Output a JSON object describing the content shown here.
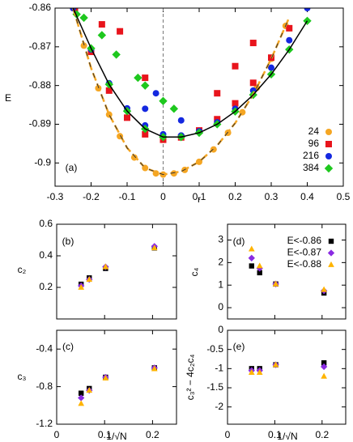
{
  "chart_data": [
    {
      "type": "scatter",
      "label": "(a)",
      "xlabel": "r",
      "ylabel": "E",
      "xlim": [
        -0.3,
        0.5
      ],
      "ylim": [
        -0.906,
        -0.86
      ],
      "xticks": [
        -0.3,
        -0.2,
        -0.1,
        0,
        0.1,
        0.2,
        0.3,
        0.4,
        0.5
      ],
      "yticks": [
        -0.9,
        -0.89,
        -0.88,
        -0.87,
        -0.86
      ],
      "vline": 0,
      "legend": "lower right",
      "series": [
        {
          "name": "24",
          "color": "#f5a623",
          "marker": "circle",
          "x": [
            -0.25,
            -0.22,
            -0.18,
            -0.15,
            -0.12,
            -0.08,
            -0.05,
            -0.02,
            0.0,
            0.03,
            0.06,
            0.1,
            0.14,
            0.18,
            0.22,
            0.26,
            0.3,
            0.34
          ],
          "values": [
            -0.86,
            -0.8697,
            -0.8807,
            -0.8875,
            -0.8931,
            -0.8986,
            -0.9013,
            -0.9027,
            -0.903,
            -0.9027,
            -0.9018,
            -0.8997,
            -0.8965,
            -0.8922,
            -0.8869,
            -0.8806,
            -0.8731,
            -0.8646
          ]
        },
        {
          "name": "96",
          "color": "#e8141c",
          "marker": "square",
          "x": [
            -0.245,
            -0.2,
            -0.15,
            -0.1,
            -0.05,
            0,
            0.05,
            0.1,
            0.15,
            0.2,
            0.25,
            0.3,
            0.35,
            -0.17,
            -0.12,
            -0.05,
            0.15,
            0.2,
            0.25
          ],
          "values": [
            -0.86,
            -0.8713,
            -0.8813,
            -0.8883,
            -0.8926,
            -0.894,
            -0.8934,
            -0.8916,
            -0.8887,
            -0.8846,
            -0.8793,
            -0.8728,
            -0.8652,
            -0.8642,
            -0.866,
            -0.878,
            -0.882,
            -0.875,
            -0.869
          ]
        },
        {
          "name": "216",
          "color": "#1428e0",
          "marker": "circle",
          "x": [
            -0.25,
            -0.2,
            -0.15,
            -0.1,
            -0.05,
            0,
            0.05,
            0.1,
            0.15,
            0.2,
            0.25,
            0.3,
            0.35,
            0.4,
            -0.05,
            -0.02,
            0.05
          ],
          "values": [
            -0.86,
            -0.8707,
            -0.8794,
            -0.8859,
            -0.8903,
            -0.8926,
            -0.8929,
            -0.8918,
            -0.8895,
            -0.886,
            -0.8813,
            -0.8754,
            -0.8683,
            -0.86,
            -0.886,
            -0.882,
            -0.889
          ]
        },
        {
          "name": "384",
          "color": "#1ec81e",
          "marker": "diamond",
          "x": [
            -0.24,
            -0.2,
            -0.15,
            -0.1,
            -0.05,
            0,
            0.05,
            0.1,
            0.15,
            0.2,
            0.25,
            0.3,
            0.35,
            0.4,
            -0.22,
            -0.17,
            -0.13,
            -0.07,
            -0.05,
            0.0,
            0.03
          ],
          "values": [
            -0.8616,
            -0.8704,
            -0.8797,
            -0.8866,
            -0.8912,
            -0.8933,
            -0.8933,
            -0.8922,
            -0.89,
            -0.8867,
            -0.8824,
            -0.8771,
            -0.8707,
            -0.8633,
            -0.8625,
            -0.867,
            -0.872,
            -0.878,
            -0.88,
            -0.884,
            -0.886
          ]
        },
        {
          "type": "line",
          "color": "#f5a623",
          "dash": true,
          "x": [
            -0.25,
            -0.2,
            -0.15,
            -0.1,
            -0.05,
            0,
            0.05,
            0.1,
            0.15,
            0.2,
            0.25,
            0.3,
            0.35
          ],
          "values": [
            -0.86,
            -0.8755,
            -0.8875,
            -0.8961,
            -0.9013,
            -0.903,
            -0.9022,
            -0.8997,
            -0.8955,
            -0.8897,
            -0.8823,
            -0.8731,
            -0.8624
          ]
        },
        {
          "type": "line",
          "color": "#000000",
          "x": [
            -0.25,
            -0.2,
            -0.15,
            -0.1,
            -0.05,
            0,
            0.05,
            0.1,
            0.15,
            0.2,
            0.25,
            0.3,
            0.35,
            0.4
          ],
          "values": [
            -0.86,
            -0.8704,
            -0.8797,
            -0.8866,
            -0.8912,
            -0.8933,
            -0.8933,
            -0.8922,
            -0.89,
            -0.8867,
            -0.8824,
            -0.8771,
            -0.8707,
            -0.8633
          ]
        }
      ]
    },
    {
      "type": "scatter",
      "label": "(b)",
      "ylabel": "c₂",
      "show_xtick_labels": false,
      "xlim": [
        0,
        0.25
      ],
      "ylim": [
        0,
        0.6
      ],
      "xticks": [
        0,
        0.1,
        0.2
      ],
      "yticks": [
        0.2,
        0.4,
        0.6
      ],
      "series": [
        {
          "color": "#000000",
          "marker": "square",
          "x": [
            0.204,
            0.102,
            0.068,
            0.051
          ],
          "values": [
            0.45,
            0.32,
            0.26,
            0.22
          ]
        },
        {
          "color": "#8a2be2",
          "marker": "diamond",
          "x": [
            0.204,
            0.102,
            0.068,
            0.051
          ],
          "values": [
            0.46,
            0.33,
            0.25,
            0.21
          ]
        },
        {
          "color": "#ffb400",
          "marker": "triangle",
          "x": [
            0.204,
            0.102,
            0.068,
            0.051
          ],
          "values": [
            0.45,
            0.33,
            0.25,
            0.2
          ]
        }
      ]
    },
    {
      "type": "scatter",
      "label": "(c)",
      "ylabel": "c₃",
      "xlabel": "1/√N",
      "xlim": [
        0,
        0.25
      ],
      "ylim": [
        -1.2,
        -0.2
      ],
      "xticks": [
        0,
        0.1,
        0.2
      ],
      "yticks": [
        -1.2,
        -0.8,
        -0.4
      ],
      "series": [
        {
          "color": "#000000",
          "marker": "square",
          "x": [
            0.204,
            0.102,
            0.068,
            0.051
          ],
          "values": [
            -0.6,
            -0.7,
            -0.82,
            -0.87
          ]
        },
        {
          "color": "#8a2be2",
          "marker": "diamond",
          "x": [
            0.204,
            0.102,
            0.068,
            0.051
          ],
          "values": [
            -0.6,
            -0.7,
            -0.84,
            -0.92
          ]
        },
        {
          "color": "#ffb400",
          "marker": "triangle",
          "x": [
            0.204,
            0.102,
            0.068,
            0.051
          ],
          "values": [
            -0.61,
            -0.71,
            -0.84,
            -0.98
          ]
        }
      ]
    },
    {
      "type": "scatter",
      "label": "(d)",
      "ylabel": "c₄",
      "show_xtick_labels": false,
      "legend": "upper right",
      "xlim": [
        0,
        0.25
      ],
      "ylim": [
        -0.5,
        3.7
      ],
      "xticks": [
        0,
        0.1,
        0.2
      ],
      "yticks": [
        0,
        1,
        2,
        3
      ],
      "series": [
        {
          "name": "E<-0.86",
          "color": "#000000",
          "marker": "square",
          "x": [
            0.204,
            0.102,
            0.068,
            0.051
          ],
          "values": [
            0.65,
            1.05,
            1.55,
            1.85
          ]
        },
        {
          "name": "E<-0.87",
          "color": "#8a2be2",
          "marker": "diamond",
          "x": [
            0.204,
            0.102,
            0.068,
            0.051
          ],
          "values": [
            0.75,
            1.05,
            1.75,
            2.2
          ]
        },
        {
          "name": "E<-0.88",
          "color": "#ffb400",
          "marker": "triangle",
          "x": [
            0.204,
            0.102,
            0.068,
            0.051
          ],
          "values": [
            0.8,
            1.05,
            1.85,
            2.6
          ]
        }
      ]
    },
    {
      "type": "scatter",
      "label": "(e)",
      "ylabel": "c₃² − 4c₂c₄",
      "xlabel": "1/√N",
      "xlim": [
        0,
        0.25
      ],
      "ylim": [
        -2.45,
        0
      ],
      "xticks": [
        0,
        0.1,
        0.2
      ],
      "yticks": [
        -2,
        -1.5,
        -1,
        -0.5,
        0
      ],
      "series": [
        {
          "color": "#000000",
          "marker": "square",
          "x": [
            0.204,
            0.102,
            0.068,
            0.051
          ],
          "values": [
            -0.85,
            -0.9,
            -1.0,
            -1.0
          ]
        },
        {
          "color": "#8a2be2",
          "marker": "diamond",
          "x": [
            0.204,
            0.102,
            0.068,
            0.051
          ],
          "values": [
            -0.95,
            -0.9,
            -1.05,
            -1.05
          ]
        },
        {
          "color": "#ffb400",
          "marker": "triangle",
          "x": [
            0.204,
            0.102,
            0.068,
            0.051
          ],
          "values": [
            -1.2,
            -0.9,
            -1.1,
            -1.1
          ]
        }
      ]
    }
  ]
}
